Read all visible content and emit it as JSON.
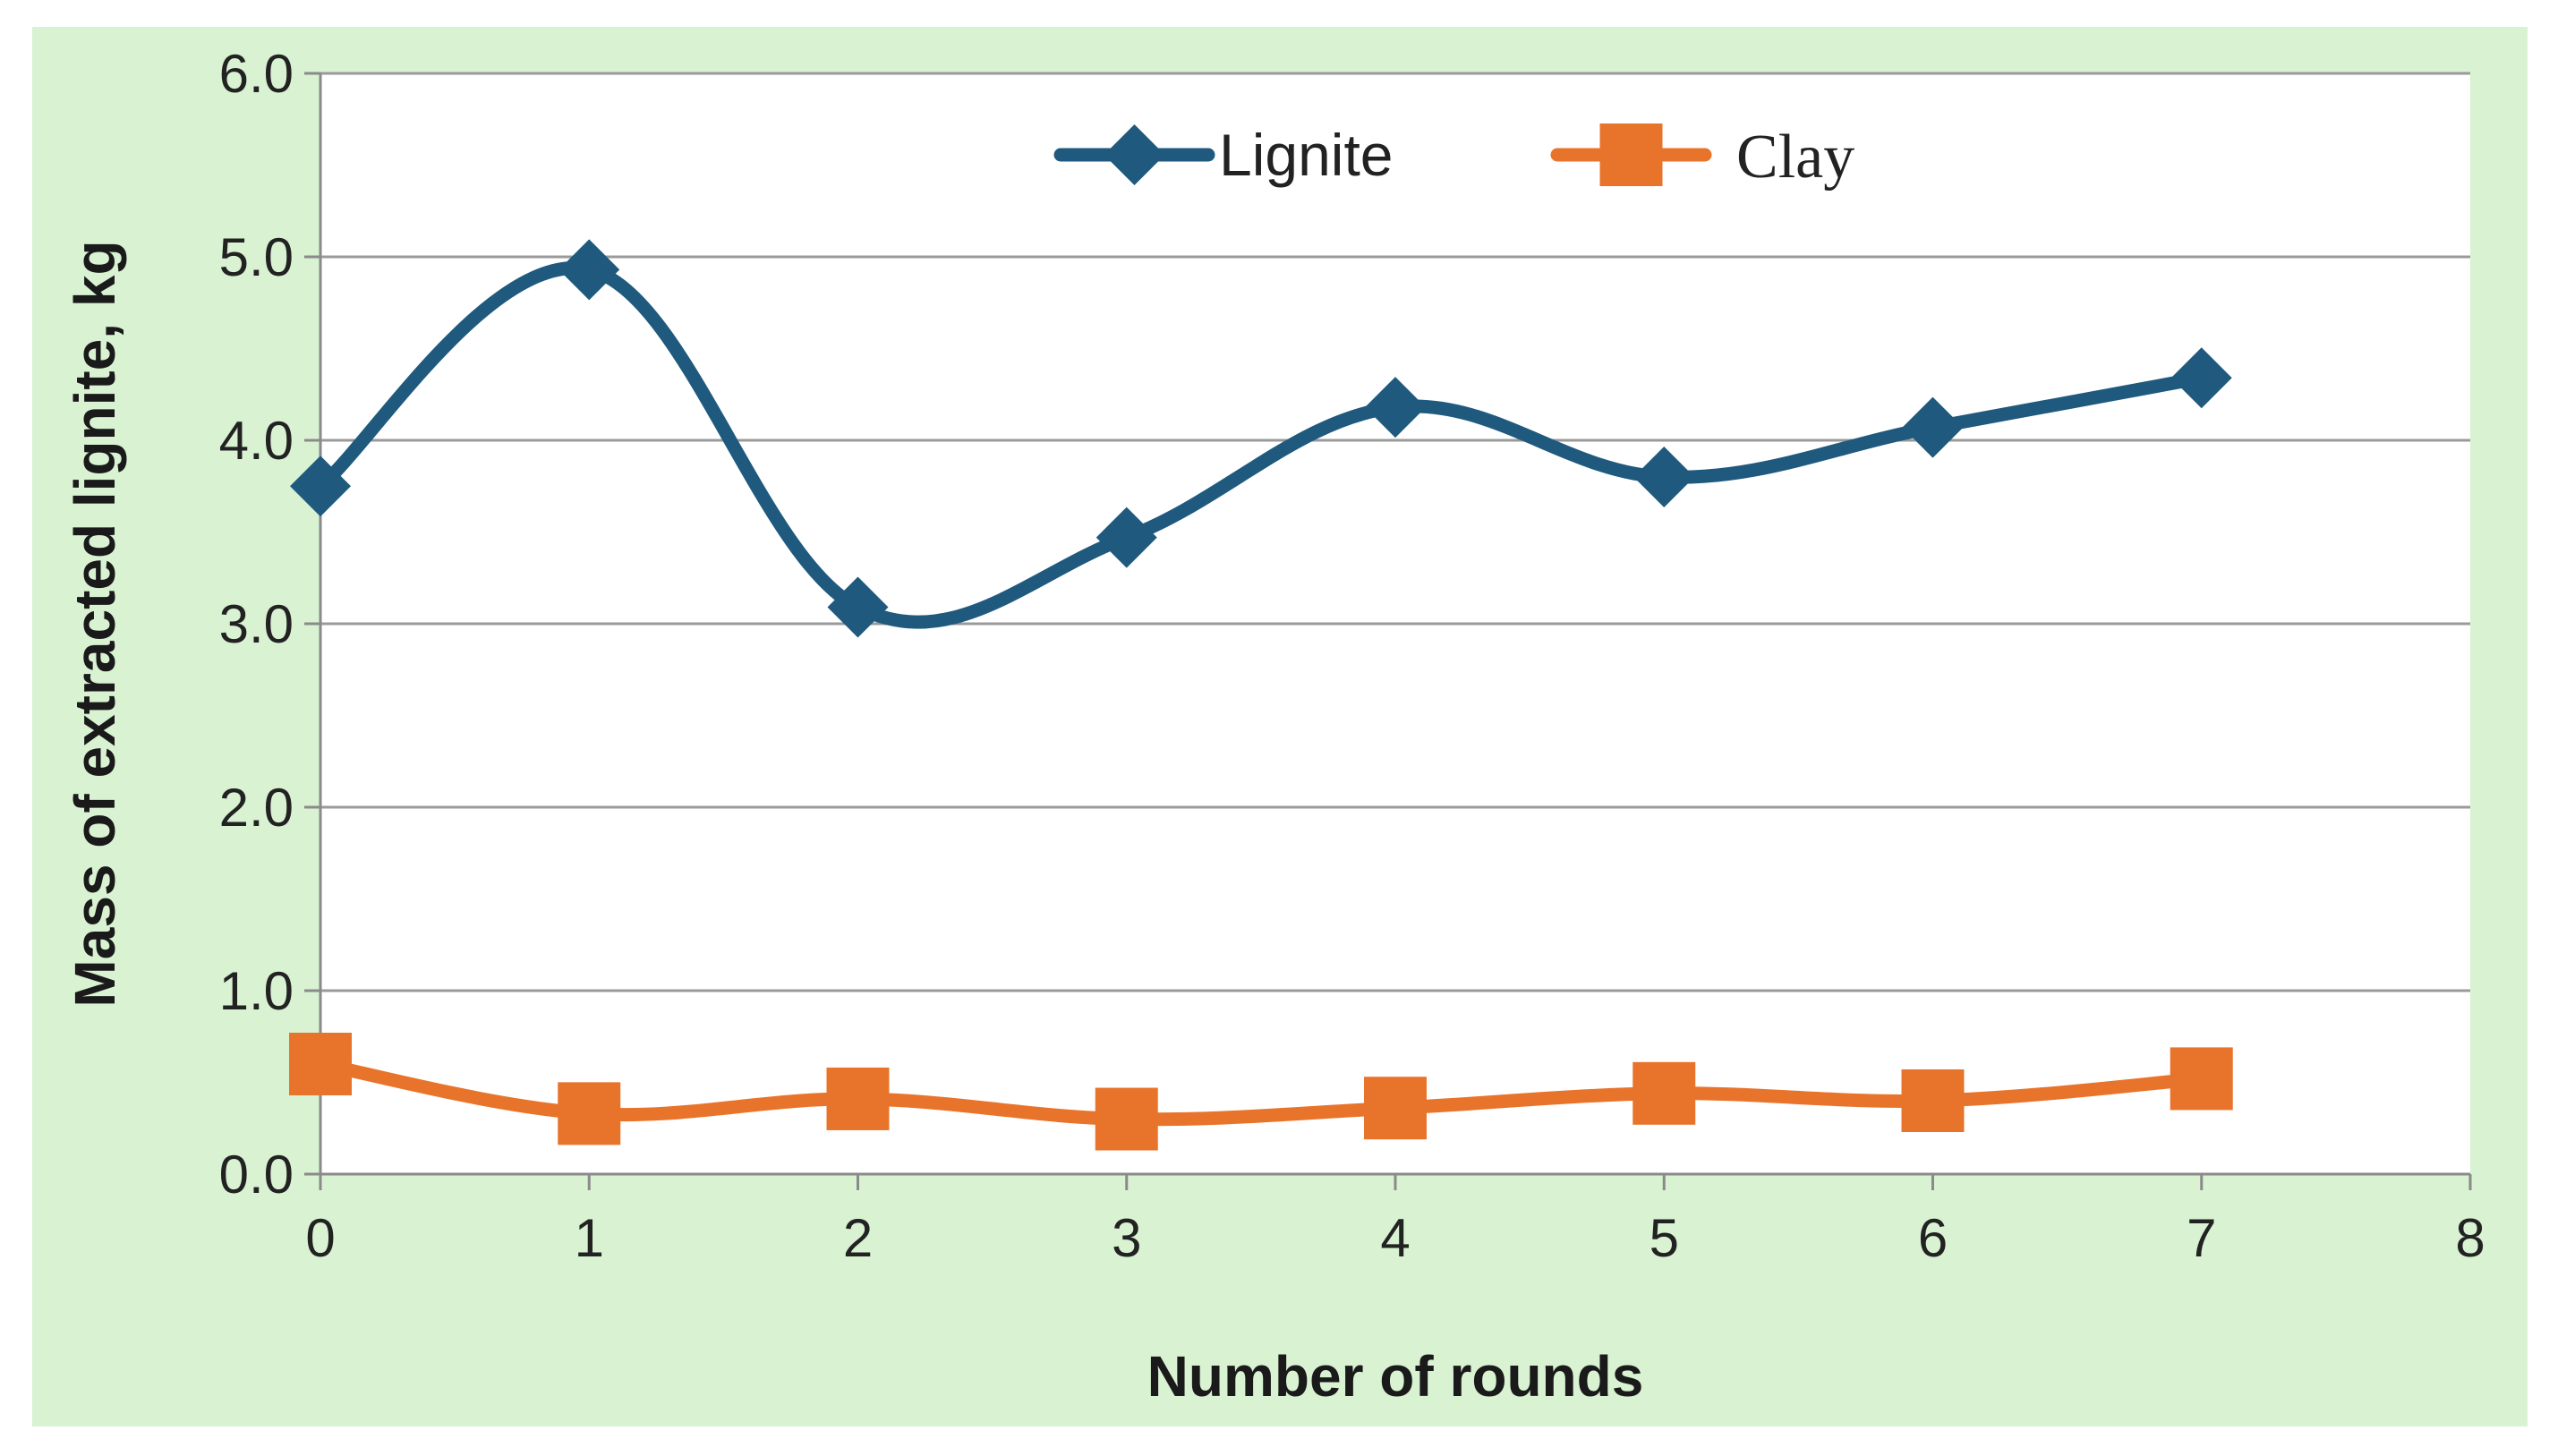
{
  "chart_data": {
    "type": "line",
    "title": "",
    "xlabel": "Number of rounds",
    "ylabel": "Mass of extracted lignite, kg",
    "xlim": [
      0,
      8
    ],
    "ylim": [
      0,
      6
    ],
    "x_ticks": [
      "0",
      "1",
      "2",
      "3",
      "4",
      "5",
      "6",
      "7",
      "8"
    ],
    "y_ticks": [
      "0.0",
      "1.0",
      "2.0",
      "3.0",
      "4.0",
      "5.0",
      "6.0"
    ],
    "grid": "horizontal",
    "legend_position": "top-center",
    "smooth_lines": true,
    "series": [
      {
        "name": "Lignite",
        "color": "#1f5a7e",
        "marker": "diamond",
        "x": [
          0,
          1,
          2,
          3,
          4,
          5,
          6,
          7
        ],
        "y": [
          3.75,
          4.93,
          3.09,
          3.47,
          4.18,
          3.8,
          4.07,
          4.34
        ]
      },
      {
        "name": "Clay",
        "color": "#e8742c",
        "marker": "square",
        "x": [
          0,
          1,
          2,
          3,
          4,
          5,
          6,
          7
        ],
        "y": [
          0.6,
          0.33,
          0.41,
          0.3,
          0.36,
          0.44,
          0.4,
          0.52
        ]
      }
    ],
    "background_color": "#d8f2d2",
    "plot_background_color": "#ffffff"
  }
}
